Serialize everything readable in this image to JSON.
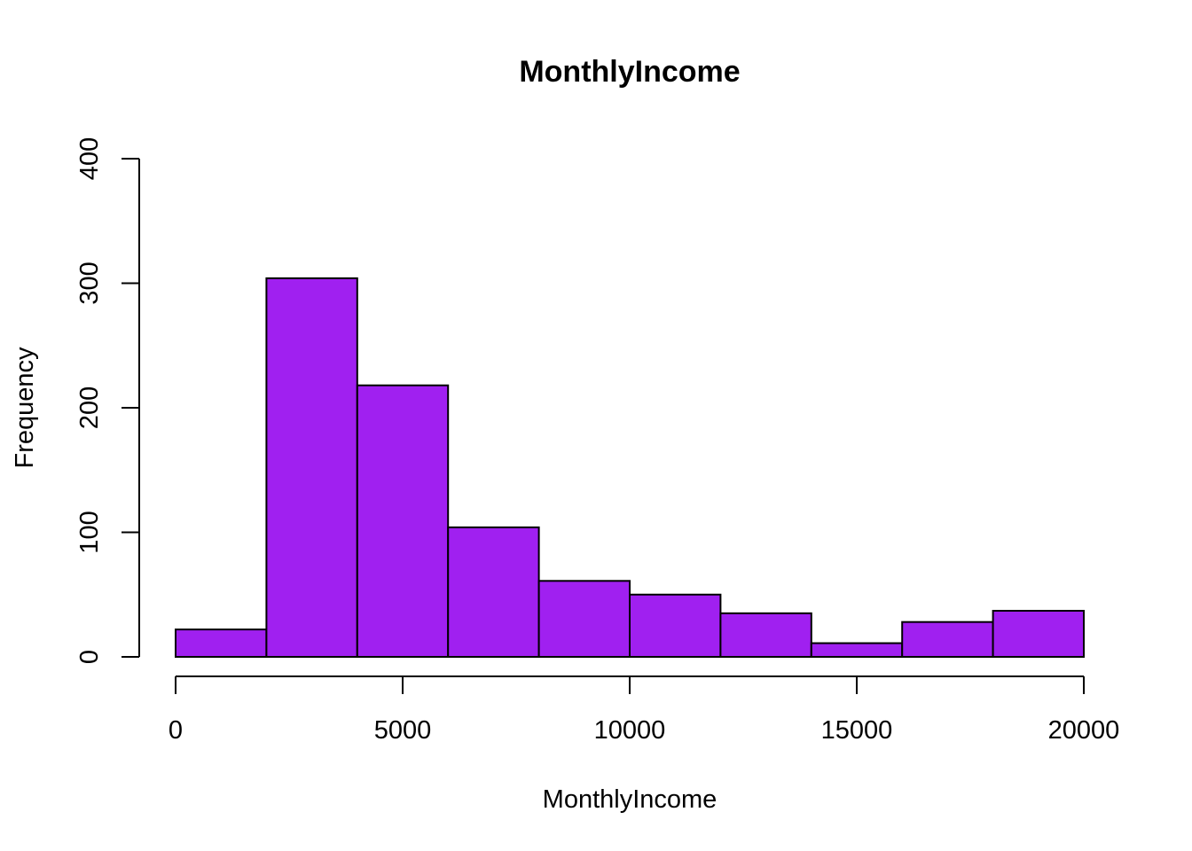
{
  "chart_data": {
    "type": "bar",
    "title": "MonthlyIncome",
    "xlabel": "MonthlyIncome",
    "ylabel": "Frequency",
    "bar_color": "#A020F0",
    "xlim": [
      0,
      20000
    ],
    "ylim": [
      0,
      400
    ],
    "x_ticks": [
      0,
      5000,
      10000,
      15000,
      20000
    ],
    "y_ticks": [
      0,
      100,
      200,
      300,
      400
    ],
    "grid": false,
    "bins": [
      {
        "start": 0,
        "end": 2000,
        "count": 22
      },
      {
        "start": 2000,
        "end": 4000,
        "count": 304
      },
      {
        "start": 4000,
        "end": 6000,
        "count": 218
      },
      {
        "start": 6000,
        "end": 8000,
        "count": 104
      },
      {
        "start": 8000,
        "end": 10000,
        "count": 61
      },
      {
        "start": 10000,
        "end": 12000,
        "count": 50
      },
      {
        "start": 12000,
        "end": 14000,
        "count": 35
      },
      {
        "start": 14000,
        "end": 16000,
        "count": 11
      },
      {
        "start": 16000,
        "end": 18000,
        "count": 28
      },
      {
        "start": 18000,
        "end": 20000,
        "count": 37
      }
    ]
  }
}
